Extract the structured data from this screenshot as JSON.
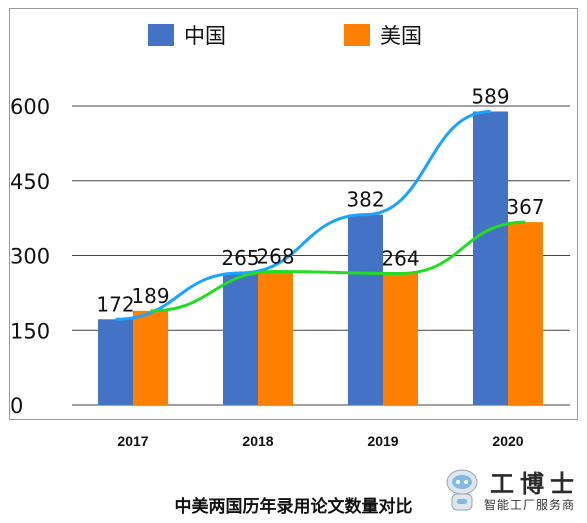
{
  "chart_data": {
    "type": "bar",
    "title": "中美两国历年录用论文数量对比",
    "categories": [
      "2017",
      "2018",
      "2019",
      "2020"
    ],
    "series": [
      {
        "name": "中国",
        "values": [
          172,
          265,
          382,
          589
        ],
        "color": "#4472c4"
      },
      {
        "name": "美国",
        "values": [
          189,
          268,
          264,
          367
        ],
        "color": "#ff7f00"
      }
    ],
    "trendlines": [
      {
        "series": "中国",
        "color": "#1aa3ff",
        "shape": "curve"
      },
      {
        "series": "美国",
        "color": "#22dd22",
        "shape": "curve"
      }
    ],
    "yticks": [
      0,
      150,
      300,
      450,
      600
    ],
    "ylim": [
      0,
      600
    ],
    "grid": "horizontal",
    "legend": "top",
    "show_data_labels": true
  },
  "watermark": {
    "brand": "工博士",
    "subtitle": "智能工厂服务商"
  }
}
